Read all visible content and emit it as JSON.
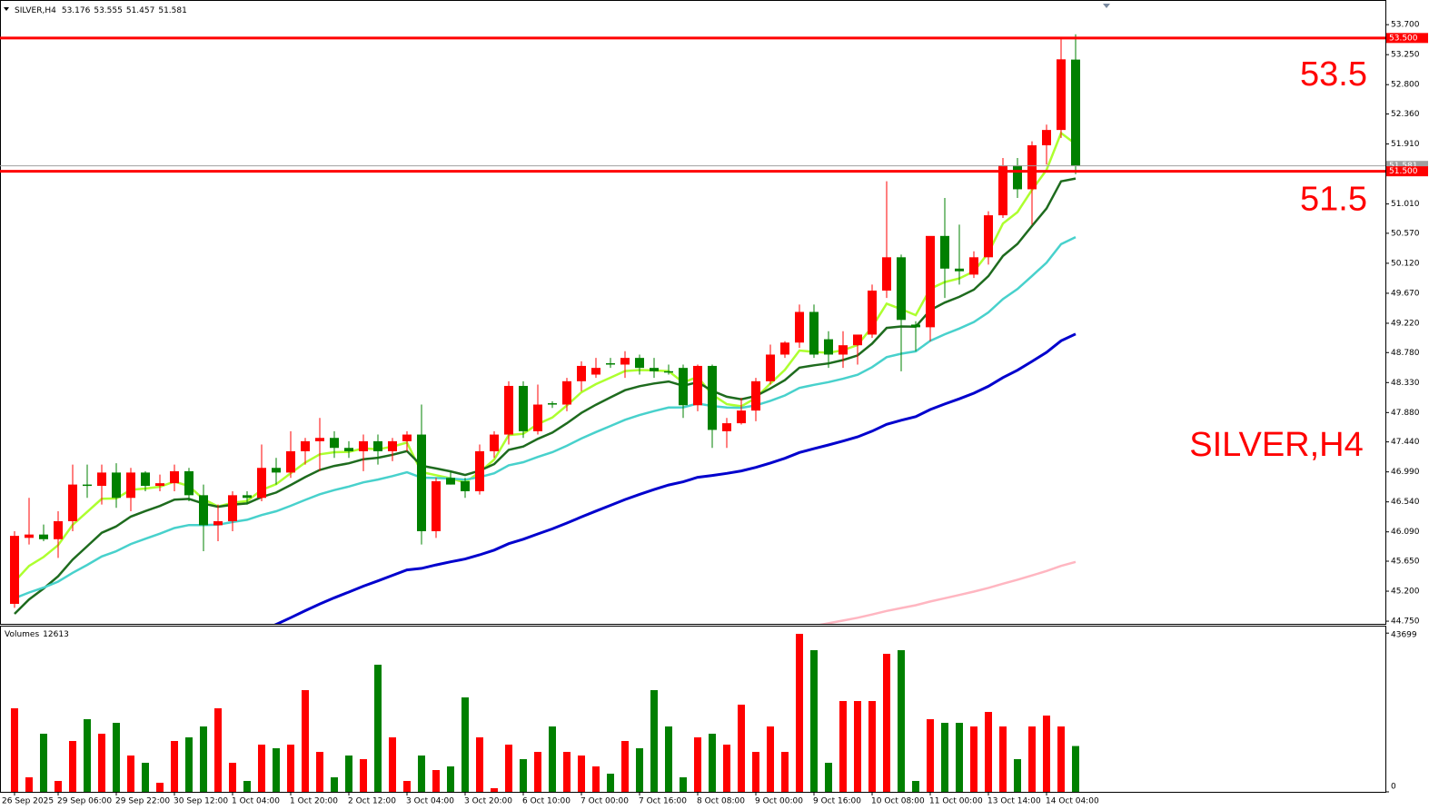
{
  "chart_data": {
    "type": "candlestick",
    "title": "SILVER,H4",
    "categories": [
      "26 Sep 2025",
      null,
      null,
      "29 Sep 06:00",
      null,
      null,
      null,
      "29 Sep 22:00",
      null,
      null,
      null,
      "30 Sep 12:00",
      null,
      null,
      null,
      "1 Oct 04:00",
      null,
      null,
      null,
      "1 Oct 20:00",
      null,
      null,
      null,
      "2 Oct 12:00",
      null,
      null,
      null,
      "3 Oct 04:00",
      null,
      null,
      null,
      "3 Oct 20:00",
      null,
      null,
      null,
      "6 Oct 10:00",
      null,
      null,
      null,
      "7 Oct 00:00",
      null,
      null,
      null,
      "7 Oct 16:00",
      null,
      null,
      null,
      "8 Oct 08:00",
      null,
      null,
      null,
      "9 Oct 00:00",
      null,
      null,
      null,
      "9 Oct 16:00",
      null,
      null,
      null,
      "10 Oct 08:00",
      null,
      null,
      null,
      "11 Oct 00:00",
      null,
      null,
      null,
      "13 Oct 14:00",
      null,
      null,
      null,
      "14 Oct 04:00",
      null,
      null
    ],
    "open": [
      45.01,
      46.0,
      46.05,
      45.98,
      46.25,
      46.8,
      46.78,
      46.98,
      46.6,
      46.98,
      46.78,
      46.82,
      47.0,
      46.64,
      46.19,
      46.25,
      46.64,
      46.6,
      47.05,
      46.98,
      47.3,
      47.45,
      47.5,
      47.35,
      47.3,
      47.45,
      47.3,
      47.45,
      47.55,
      46.1,
      46.9,
      46.85,
      46.7,
      47.3,
      47.55,
      48.28,
      47.6,
      48.02,
      48.0,
      48.35,
      48.45,
      48.62,
      48.6,
      48.7,
      48.55,
      48.5,
      48.55,
      47.99,
      48.58,
      47.6,
      47.72,
      47.91,
      48.35,
      48.75,
      48.93,
      49.39,
      48.98,
      48.75,
      48.89,
      49.05,
      49.71,
      50.21,
      49.2,
      49.16,
      50.53,
      50.04,
      49.95,
      50.21,
      50.84,
      51.59,
      51.23,
      51.89,
      52.12,
      53.176
    ],
    "high": [
      46.1,
      46.6,
      46.2,
      46.4,
      47.1,
      47.1,
      47.1,
      47.12,
      47.05,
      47.0,
      46.95,
      47.1,
      47.05,
      46.8,
      46.5,
      46.7,
      46.7,
      47.4,
      47.2,
      47.6,
      47.5,
      47.8,
      47.6,
      47.45,
      47.55,
      47.55,
      47.5,
      47.6,
      48.0,
      46.9,
      47.0,
      46.9,
      47.4,
      47.6,
      48.35,
      48.35,
      48.3,
      48.05,
      48.4,
      48.65,
      48.7,
      48.7,
      48.8,
      48.75,
      48.7,
      48.6,
      48.6,
      48.6,
      48.6,
      47.8,
      48.1,
      48.4,
      48.9,
      48.95,
      49.5,
      49.5,
      49.1,
      49.1,
      49.05,
      49.8,
      51.35,
      50.25,
      49.25,
      50.5,
      51.1,
      50.7,
      50.3,
      50.9,
      51.7,
      51.7,
      51.95,
      52.2,
      53.5,
      53.555
    ],
    "low": [
      44.95,
      45.9,
      45.95,
      45.7,
      46.1,
      46.6,
      46.5,
      46.45,
      46.4,
      46.7,
      46.7,
      46.7,
      46.55,
      45.8,
      45.95,
      46.1,
      46.5,
      46.55,
      46.8,
      46.9,
      47.1,
      47.0,
      47.2,
      47.2,
      47.0,
      47.1,
      47.15,
      47.3,
      45.9,
      46.0,
      46.8,
      46.6,
      46.65,
      47.2,
      47.4,
      47.5,
      47.55,
      47.95,
      47.9,
      48.2,
      48.4,
      48.55,
      48.4,
      48.45,
      48.4,
      48.45,
      47.8,
      47.9,
      47.35,
      47.35,
      47.7,
      47.75,
      48.3,
      48.7,
      48.85,
      48.7,
      48.55,
      48.55,
      48.6,
      49.0,
      49.6,
      48.5,
      48.8,
      48.95,
      49.6,
      49.8,
      49.9,
      50.1,
      50.8,
      51.1,
      50.7,
      51.6,
      52.0,
      51.457
    ],
    "close": [
      46.03,
      46.05,
      45.98,
      46.25,
      46.8,
      46.78,
      46.98,
      46.6,
      46.98,
      46.78,
      46.82,
      47.0,
      46.64,
      46.19,
      46.25,
      46.64,
      46.6,
      47.05,
      46.98,
      47.3,
      47.45,
      47.5,
      47.35,
      47.3,
      47.45,
      47.3,
      47.45,
      47.55,
      46.1,
      46.85,
      46.8,
      46.7,
      47.3,
      47.55,
      48.28,
      47.6,
      48.0,
      48.0,
      48.35,
      48.58,
      48.55,
      48.6,
      48.7,
      48.55,
      48.5,
      48.48,
      47.99,
      48.58,
      47.62,
      47.72,
      47.91,
      48.35,
      48.75,
      48.93,
      49.39,
      48.75,
      48.75,
      48.89,
      49.05,
      49.71,
      50.21,
      49.27,
      49.16,
      50.53,
      50.04,
      50.0,
      50.21,
      50.84,
      51.59,
      51.23,
      51.89,
      52.12,
      53.18,
      51.581
    ],
    "up_color": "#ff0000",
    "down_color": "#008000",
    "ylim": [
      44.71,
      54.07
    ],
    "yticks": [
      {
        "value": 53.7,
        "label": "53.700"
      },
      {
        "value": 53.25,
        "label": "53.250"
      },
      {
        "value": 52.8,
        "label": "52.800"
      },
      {
        "value": 52.36,
        "label": "52.360"
      },
      {
        "value": 51.91,
        "label": "51.910"
      },
      {
        "value": 51.01,
        "label": "51.010"
      },
      {
        "value": 50.57,
        "label": "50.570"
      },
      {
        "value": 50.12,
        "label": "50.120"
      },
      {
        "value": 49.67,
        "label": "49.670"
      },
      {
        "value": 49.22,
        "label": "49.220"
      },
      {
        "value": 48.78,
        "label": "48.780"
      },
      {
        "value": 48.33,
        "label": "48.330"
      },
      {
        "value": 47.88,
        "label": "47.880"
      },
      {
        "value": 47.44,
        "label": "47.440"
      },
      {
        "value": 46.99,
        "label": "46.990"
      },
      {
        "value": 46.54,
        "label": "46.540"
      },
      {
        "value": 46.09,
        "label": "46.090"
      },
      {
        "value": 45.65,
        "label": "45.650"
      },
      {
        "value": 45.2,
        "label": "45.200"
      },
      {
        "value": 44.75,
        "label": "44.750"
      }
    ],
    "levels": [
      {
        "value": 53.5,
        "label": "53.500",
        "color": "#ff0000"
      },
      {
        "value": 51.5,
        "label": "51.500",
        "color": "#ff0000"
      }
    ],
    "moving_averages": [
      {
        "period": 5,
        "start": 45.0,
        "color": "#adff2f"
      },
      {
        "period": 10,
        "start": 44.6,
        "color": "#1e6b1e"
      },
      {
        "period": 21,
        "start": 45.0,
        "color": "#48d1cc"
      },
      {
        "period": 50,
        "start": 42.5,
        "color": "#0000cd"
      },
      {
        "period": 200,
        "start": 42.5,
        "color": "#ffb6c1"
      }
    ],
    "volume_label": "Volumes",
    "volumes": [
      23000,
      4000,
      16000,
      3000,
      14000,
      20000,
      16000,
      19000,
      10000,
      8000,
      2500,
      14000,
      15000,
      18000,
      23000,
      8000,
      3000,
      13000,
      12000,
      13000,
      28000,
      11000,
      4000,
      10000,
      9000,
      35000,
      15000,
      3000,
      10000,
      6000,
      7000,
      26000,
      15000,
      1000,
      13000,
      9000,
      11000,
      18000,
      11000,
      10000,
      7000,
      5000,
      14000,
      12000,
      28000,
      18000,
      4000,
      15000,
      16000,
      13000,
      24000,
      11000,
      18000,
      11000,
      43500,
      39000,
      8000,
      25000,
      25000,
      25000,
      38000,
      39000,
      3000,
      20000,
      19000,
      19000,
      18000,
      22000,
      18000,
      9000,
      18000,
      21000,
      18000,
      12613
    ],
    "vlim": [
      0,
      45500
    ],
    "vticks": [
      43699,
      0
    ]
  }
}
